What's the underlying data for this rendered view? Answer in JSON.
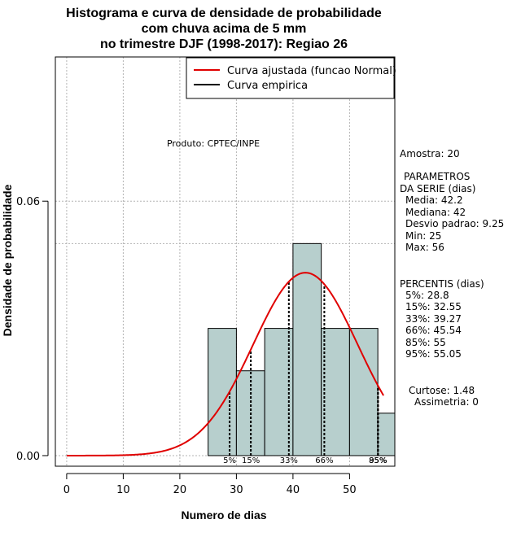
{
  "chart_data": {
    "type": "histogram",
    "title_lines": [
      "Histograma e curva de densidade de probabilidade",
      "com chuva acima de 5 mm",
      "no trimestre DJF (1998-2017): Regiao 26"
    ],
    "xlabel": "Numero de dias",
    "ylabel": "Densidade de probabilidade",
    "xlim": [
      -2,
      58
    ],
    "ylim": [
      -0.0025,
      0.094
    ],
    "xticks": [
      0,
      10,
      20,
      30,
      40,
      50
    ],
    "yticks": [
      0.0,
      0.06
    ],
    "ytick_labels": [
      "0.00",
      "0.06"
    ],
    "grid": true,
    "hline": 0.05,
    "bins": [
      {
        "x0": 25,
        "x1": 30,
        "density": 0.03
      },
      {
        "x0": 30,
        "x1": 35,
        "density": 0.02
      },
      {
        "x0": 35,
        "x1": 40,
        "density": 0.03
      },
      {
        "x0": 40,
        "x1": 45,
        "density": 0.05
      },
      {
        "x0": 45,
        "x1": 50,
        "density": 0.03
      },
      {
        "x0": 50,
        "x1": 55,
        "density": 0.03
      },
      {
        "x0": 55,
        "x1": 60,
        "density": 0.01
      }
    ],
    "normal_curve": {
      "mean": 42.2,
      "sd": 9.25,
      "x_from": 0,
      "x_to": 56
    },
    "percentile_lines": [
      {
        "label": "5%",
        "x": 28.8
      },
      {
        "label": "15%",
        "x": 32.55
      },
      {
        "label": "33%",
        "x": 39.27
      },
      {
        "label": "66%",
        "x": 45.54
      },
      {
        "label": "85%",
        "x": 55
      },
      {
        "label": "95%",
        "x": 55.05
      }
    ],
    "legend": {
      "placement": "top-right",
      "entries": [
        {
          "label": "Curva ajustada (funcao Normal)",
          "color": "#e00000"
        },
        {
          "label": "Curva empirica",
          "color": "#000000"
        }
      ]
    },
    "annotation": "Produto: CPTEC/INPE",
    "bar_color": "#b7cfcd",
    "stats": {
      "amostra": "Amostra: 20",
      "parametros_title_1": "PARAMETROS",
      "parametros_title_2": "DA SERIE (dias)",
      "media": "Media: 42.2",
      "mediana": "Mediana: 42",
      "desvio": "Desvio padrao: 9.25",
      "min": "Min: 25",
      "max": "Max: 56",
      "percentis_title": "PERCENTIS (dias)",
      "p5": "5%: 28.8",
      "p15": "15%: 32.55",
      "p33": "33%: 39.27",
      "p66": "66%: 45.54",
      "p85": "85%: 55",
      "p95": "95%: 55.05",
      "curtose": "Curtose: 1.48",
      "assimetria": "Assimetria: 0"
    }
  }
}
